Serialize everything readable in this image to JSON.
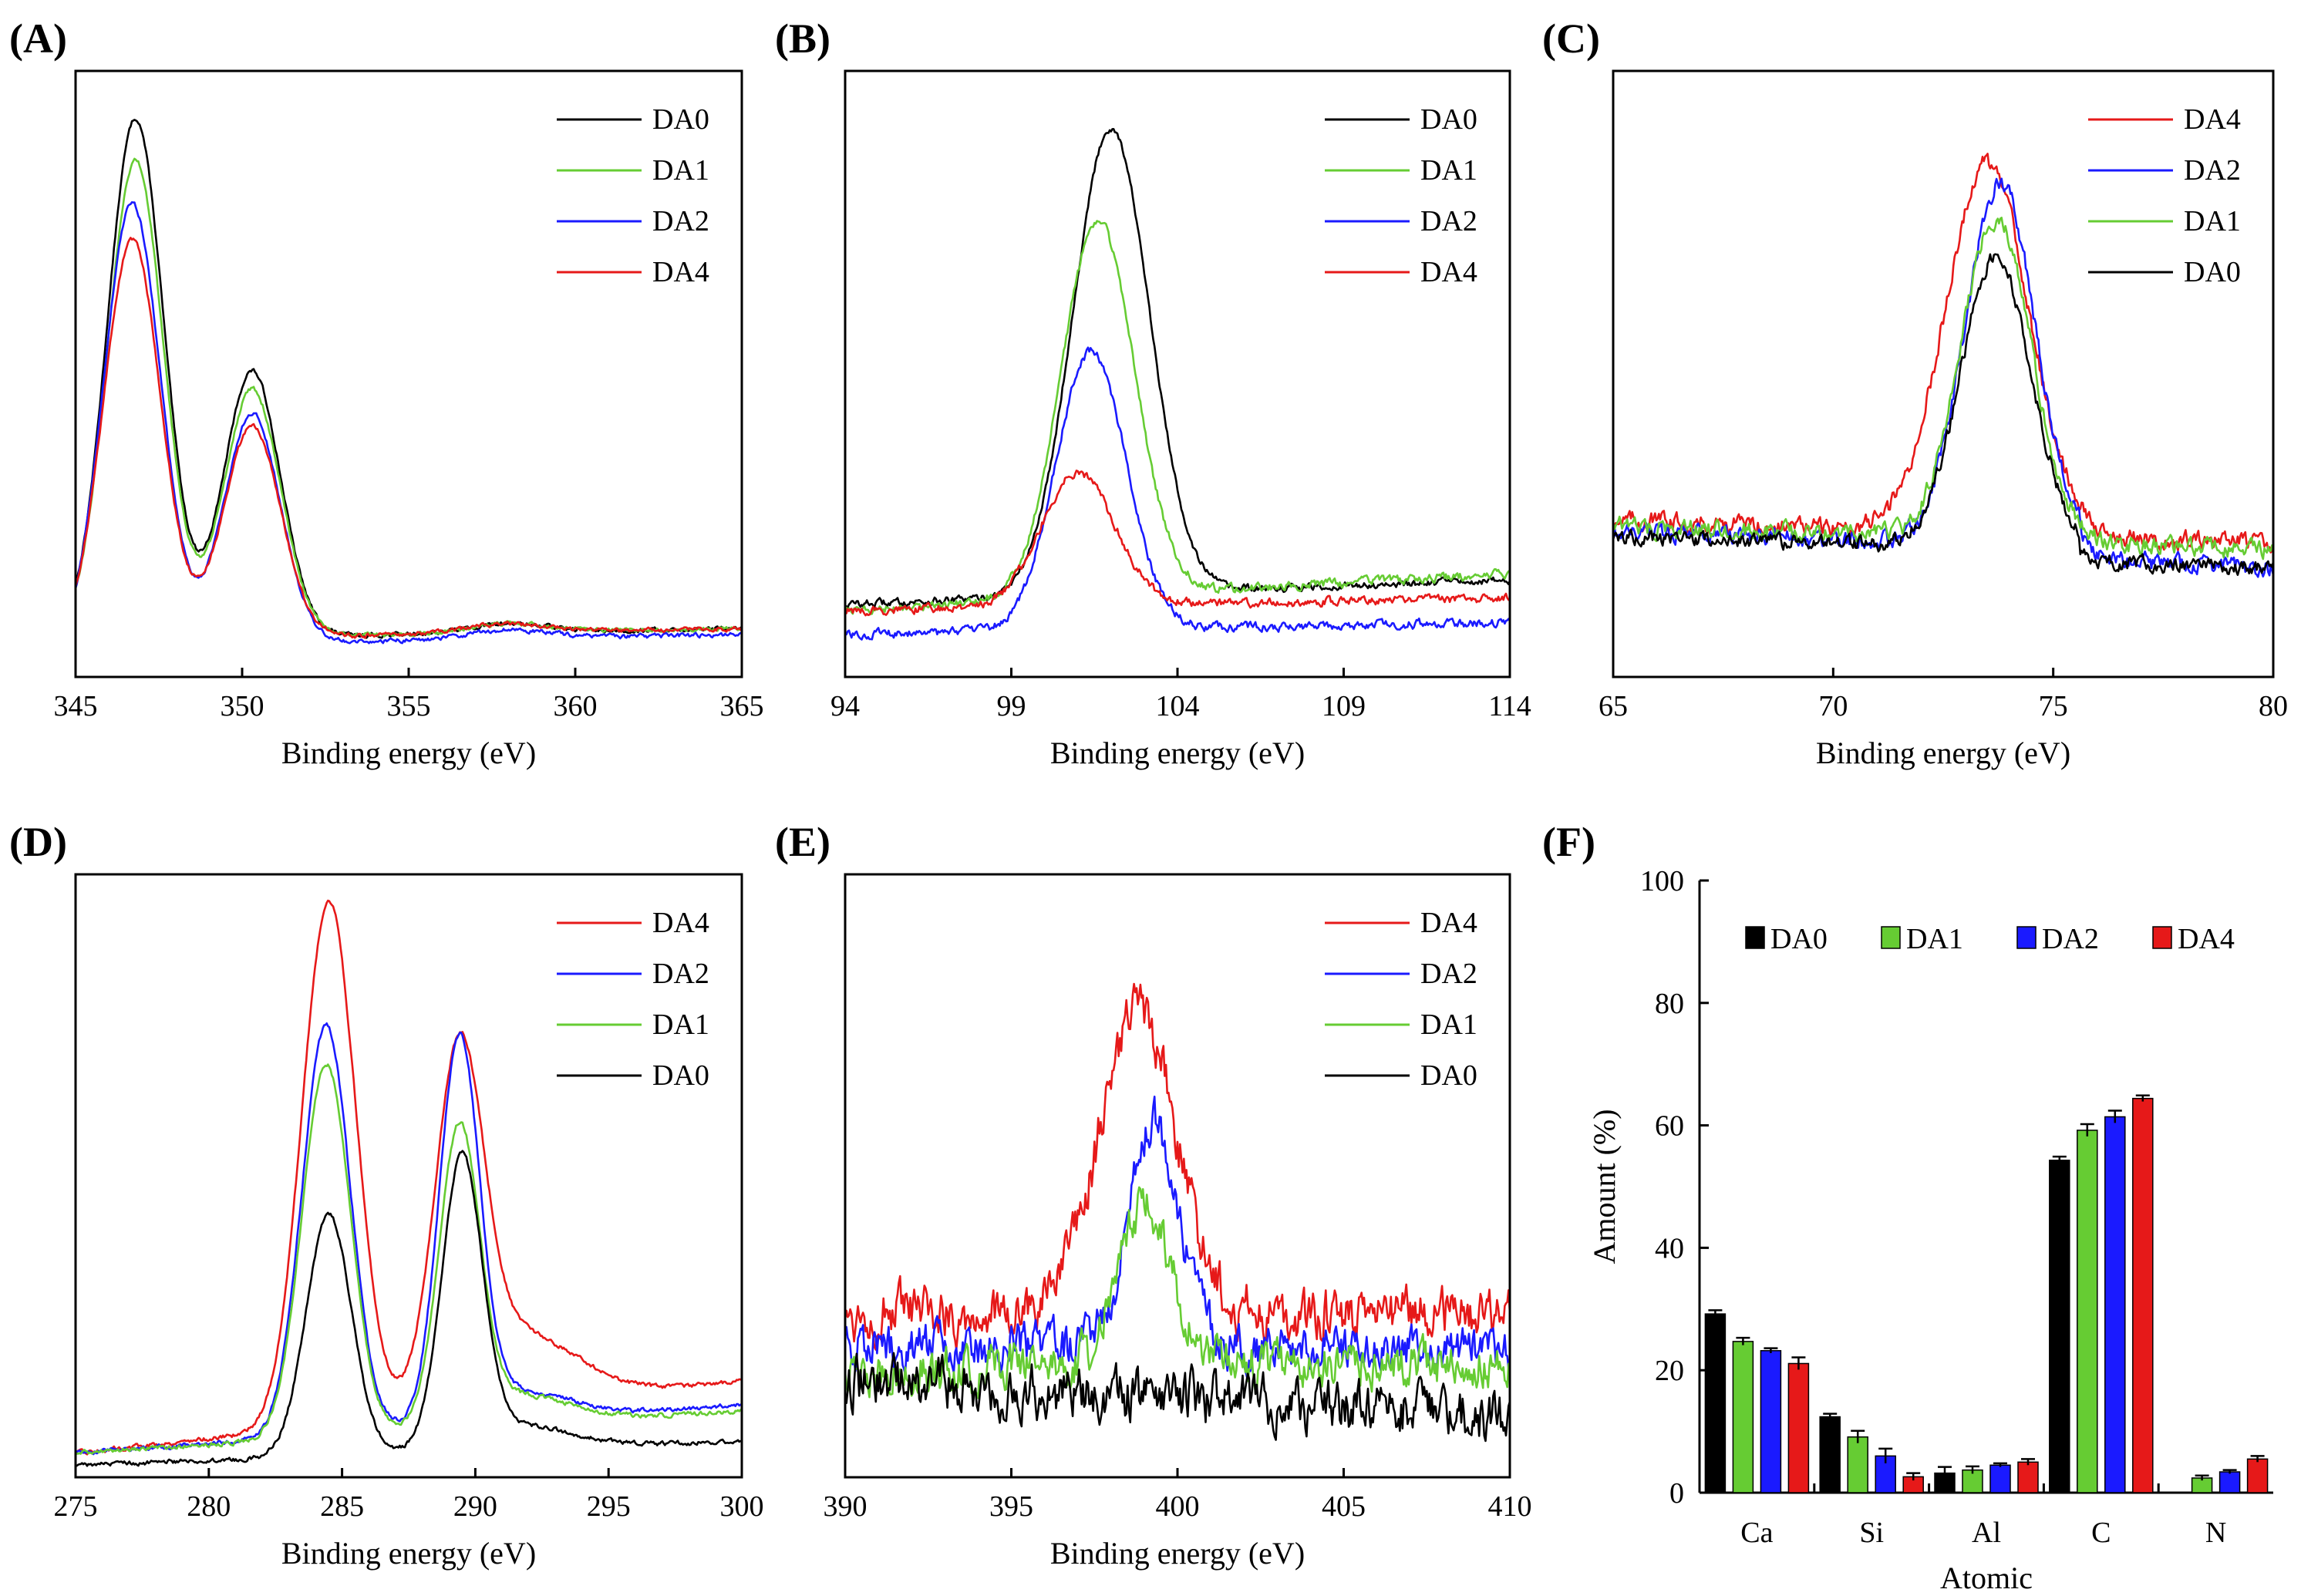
{
  "colors": {
    "DA0": "#000000",
    "DA1": "#66cc33",
    "DA2": "#1a1aff",
    "DA4": "#e61919"
  },
  "chart_data": [
    {
      "panel": "(A)",
      "type": "line",
      "xlabel": "Binding energy (eV)",
      "ylabel": "",
      "xlim": [
        345,
        365
      ],
      "ylim": [
        0,
        1
      ],
      "xticks": [
        345,
        350,
        355,
        360,
        365
      ],
      "legend_position": "top-right",
      "legend": [
        "DA0",
        "DA1",
        "DA2",
        "DA4"
      ],
      "series": [
        {
          "name": "DA0",
          "base": 0.06,
          "base_end": 0.08,
          "noise": 0.003,
          "dip_after": 0,
          "peaks": [
            [
              346.8,
              0.86,
              0.85
            ],
            [
              350.3,
              0.44,
              0.85
            ],
            [
              358.0,
              0.015,
              1.2
            ]
          ]
        },
        {
          "name": "DA1",
          "base": 0.06,
          "base_end": 0.08,
          "noise": 0.003,
          "dip_after": 0,
          "peaks": [
            [
              346.8,
              0.79,
              0.85
            ],
            [
              350.3,
              0.41,
              0.85
            ],
            [
              358.0,
              0.015,
              1.2
            ]
          ]
        },
        {
          "name": "DA2",
          "base": 0.05,
          "base_end": 0.07,
          "noise": 0.003,
          "dip_after": 0,
          "peaks": [
            [
              346.7,
              0.73,
              0.85
            ],
            [
              350.3,
              0.38,
              0.85
            ],
            [
              358.0,
              0.015,
              1.2
            ]
          ]
        },
        {
          "name": "DA4",
          "base": 0.06,
          "base_end": 0.08,
          "noise": 0.003,
          "dip_after": 0,
          "peaks": [
            [
              346.7,
              0.66,
              0.85
            ],
            [
              350.3,
              0.35,
              0.85
            ],
            [
              358.0,
              0.015,
              1.2
            ]
          ]
        }
      ]
    },
    {
      "panel": "(B)",
      "type": "line",
      "xlabel": "Binding energy (eV)",
      "ylabel": "",
      "xlim": [
        94,
        114
      ],
      "ylim": [
        0,
        1
      ],
      "xticks": [
        94,
        99,
        104,
        109,
        114
      ],
      "legend_position": "top-right",
      "legend": [
        "DA0",
        "DA1",
        "DA2",
        "DA4"
      ],
      "series": [
        {
          "name": "DA0",
          "base": 0.12,
          "base_end": 0.16,
          "noise": 0.005,
          "dip_after": 0,
          "peaks": [
            [
              102.0,
              0.77,
              1.15
            ]
          ]
        },
        {
          "name": "DA1",
          "base": 0.11,
          "base_end": 0.17,
          "noise": 0.006,
          "dip_after": 0,
          "peaks": [
            [
              101.6,
              0.62,
              1.1
            ]
          ]
        },
        {
          "name": "DA2",
          "base": 0.07,
          "base_end": 0.09,
          "noise": 0.006,
          "dip_after": 0,
          "peaks": [
            [
              101.4,
              0.46,
              1.05
            ]
          ]
        },
        {
          "name": "DA4",
          "base": 0.11,
          "base_end": 0.13,
          "noise": 0.006,
          "dip_after": 0,
          "peaks": [
            [
              101.0,
              0.22,
              1.1
            ]
          ]
        }
      ]
    },
    {
      "panel": "(C)",
      "type": "line",
      "xlabel": "Binding energy (eV)",
      "ylabel": "",
      "xlim": [
        65,
        80
      ],
      "ylim": [
        0,
        1
      ],
      "xticks": [
        65,
        70,
        75,
        80
      ],
      "legend_position": "top-right",
      "legend": [
        "DA4",
        "DA2",
        "DA1",
        "DA0"
      ],
      "series": [
        {
          "name": "DA4",
          "base": 0.26,
          "base_end": 0.22,
          "noise": 0.012,
          "dip_after": 0,
          "peaks": [
            [
              73.5,
              0.61,
              0.95
            ]
          ]
        },
        {
          "name": "DA2",
          "base": 0.24,
          "base_end": 0.2,
          "noise": 0.012,
          "dip_after": 75.6,
          "peaks": [
            [
              73.8,
              0.6,
              0.8
            ]
          ]
        },
        {
          "name": "DA1",
          "base": 0.25,
          "base_end": 0.21,
          "noise": 0.012,
          "dip_after": 0,
          "peaks": [
            [
              73.7,
              0.53,
              0.8
            ]
          ]
        },
        {
          "name": "DA0",
          "base": 0.23,
          "base_end": 0.2,
          "noise": 0.01,
          "dip_after": 75.6,
          "peaks": [
            [
              73.7,
              0.48,
              0.8
            ]
          ]
        }
      ]
    },
    {
      "panel": "(D)",
      "type": "line",
      "xlabel": "Binding energy (eV)",
      "ylabel": "",
      "xlim": [
        275,
        300
      ],
      "ylim": [
        0,
        1
      ],
      "xticks": [
        275,
        280,
        285,
        290,
        295,
        300
      ],
      "legend_position": "top-right",
      "legend": [
        "DA4",
        "DA2",
        "DA1",
        "DA0"
      ],
      "series": [
        {
          "name": "DA4",
          "base": 0.04,
          "base_end": 0.16,
          "noise": 0.003,
          "dip_after": 0,
          "peaks": [
            [
              284.5,
              0.87,
              1.0
            ],
            [
              289.4,
              0.55,
              0.9
            ],
            [
              291.5,
              0.12,
              2.2
            ]
          ]
        },
        {
          "name": "DA2",
          "base": 0.04,
          "base_end": 0.12,
          "noise": 0.003,
          "dip_after": 0,
          "peaks": [
            [
              284.4,
              0.68,
              0.9
            ],
            [
              289.4,
              0.62,
              0.75
            ],
            [
              291.5,
              0.05,
              2.0
            ]
          ]
        },
        {
          "name": "DA1",
          "base": 0.04,
          "base_end": 0.11,
          "noise": 0.003,
          "dip_after": 0,
          "peaks": [
            [
              284.4,
              0.62,
              0.9
            ],
            [
              289.4,
              0.48,
              0.75
            ],
            [
              291.5,
              0.05,
              2.0
            ]
          ]
        },
        {
          "name": "DA0",
          "base": 0.02,
          "base_end": 0.06,
          "noise": 0.003,
          "dip_after": 0,
          "peaks": [
            [
              284.5,
              0.4,
              0.85
            ],
            [
              289.5,
              0.47,
              0.75
            ],
            [
              291.5,
              0.04,
              2.0
            ]
          ]
        }
      ]
    },
    {
      "panel": "(E)",
      "type": "line",
      "xlabel": "Binding energy (eV)",
      "ylabel": "",
      "xlim": [
        390,
        410
      ],
      "ylim": [
        0,
        1
      ],
      "xticks": [
        390,
        395,
        400,
        405,
        410
      ],
      "legend_position": "top-right",
      "legend": [
        "DA4",
        "DA2",
        "DA1",
        "DA0"
      ],
      "series": [
        {
          "name": "DA4",
          "base": 0.27,
          "base_end": 0.27,
          "noise": 0.035,
          "dip_after": 0,
          "peaks": [
            [
              398.8,
              0.5,
              1.15
            ]
          ]
        },
        {
          "name": "DA2",
          "base": 0.22,
          "base_end": 0.21,
          "noise": 0.03,
          "dip_after": 0,
          "peaks": [
            [
              399.3,
              0.37,
              0.75
            ]
          ]
        },
        {
          "name": "DA1",
          "base": 0.18,
          "base_end": 0.19,
          "noise": 0.03,
          "dip_after": 0,
          "peaks": [
            [
              399.0,
              0.27,
              0.8
            ]
          ]
        },
        {
          "name": "DA0",
          "base": 0.16,
          "base_end": 0.1,
          "noise": 0.035,
          "dip_after": 0,
          "peaks": []
        }
      ]
    },
    {
      "panel": "(F)",
      "type": "bar",
      "xlabel": "Atomic",
      "ylabel": "Amount (%)",
      "ylim": [
        0,
        100
      ],
      "yticks": [
        0,
        20,
        40,
        60,
        80,
        100
      ],
      "legend_position": "top",
      "categories": [
        "Ca",
        "Si",
        "Al",
        "C",
        "N"
      ],
      "series": [
        {
          "name": "DA0",
          "values": [
            29.2,
            12.4,
            3.2,
            54.3,
            0.0
          ],
          "errors": [
            0.6,
            0.5,
            1.0,
            0.6,
            0.0
          ]
        },
        {
          "name": "DA1",
          "values": [
            24.7,
            9.1,
            3.7,
            59.2,
            2.4
          ],
          "errors": [
            0.6,
            1.0,
            0.6,
            1.0,
            0.4
          ]
        },
        {
          "name": "DA2",
          "values": [
            23.2,
            6.0,
            4.5,
            61.4,
            3.4
          ],
          "errors": [
            0.4,
            1.2,
            0.3,
            1.0,
            0.3
          ]
        },
        {
          "name": "DA4",
          "values": [
            21.1,
            2.6,
            5.0,
            64.4,
            5.5
          ],
          "errors": [
            1.0,
            0.6,
            0.5,
            0.5,
            0.5
          ]
        }
      ]
    }
  ]
}
